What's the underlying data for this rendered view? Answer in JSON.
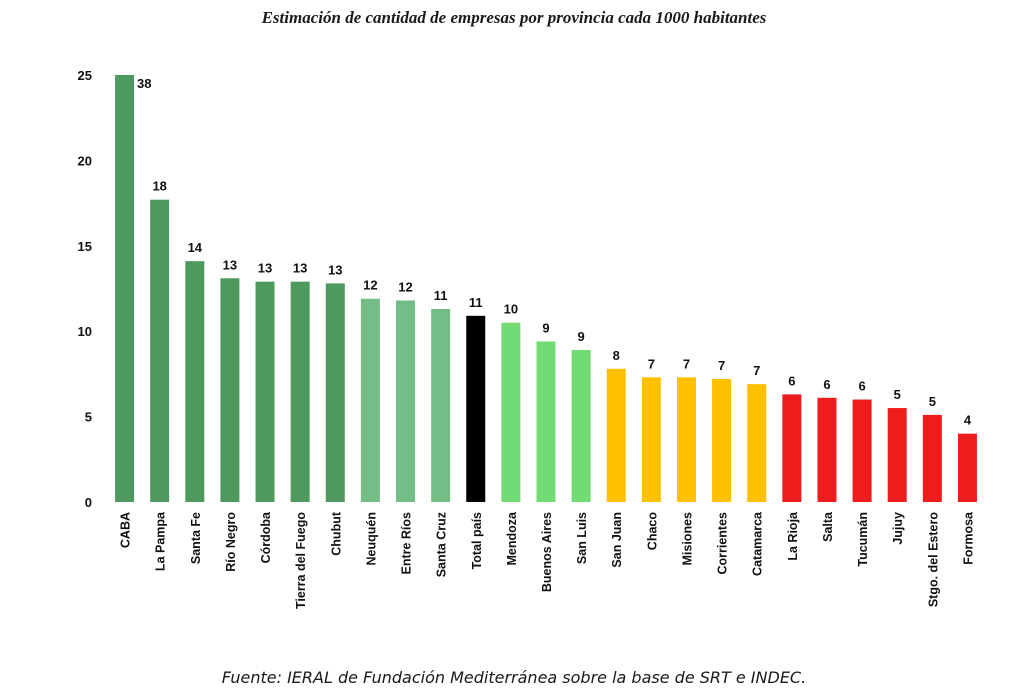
{
  "chart_data": {
    "type": "bar",
    "title": "Estimación de cantidad de empresas por provincia cada 1000 habitantes",
    "source": "Fuente: IERAL de Fundación Mediterránea sobre la base de SRT e INDEC.",
    "ylim": [
      0,
      25
    ],
    "yticks": [
      0,
      5,
      10,
      15,
      20,
      25
    ],
    "grid": false,
    "legend": "none",
    "categories": [
      "CABA",
      "La Pampa",
      "Santa Fe",
      "Río Negro",
      "Córdoba",
      "Tierra del Fuego",
      "Chubut",
      "Neuquén",
      "Entre Ríos",
      "Santa Cruz",
      "Total país",
      "Mendoza",
      "Buenos Aires",
      "San Luis",
      "San Juan",
      "Chaco",
      "Misiones",
      "Corrientes",
      "Catamarca",
      "La Rioja",
      "Salta",
      "Tucumán",
      "Jujuy",
      "Stgo. del Estero",
      "Formosa"
    ],
    "values": [
      38,
      17.7,
      14.1,
      13.1,
      12.9,
      12.9,
      12.8,
      11.9,
      11.8,
      11.3,
      10.9,
      10.5,
      9.4,
      8.9,
      7.8,
      7.3,
      7.3,
      7.2,
      6.9,
      6.3,
      6.1,
      6.0,
      5.5,
      5.1,
      4.0
    ],
    "data_labels": [
      "38",
      "18",
      "14",
      "13",
      "13",
      "13",
      "13",
      "12",
      "12",
      "11",
      "11",
      "10",
      "9",
      "9",
      "8",
      "7",
      "7",
      "7",
      "7",
      "6",
      "6",
      "6",
      "5",
      "5",
      "4"
    ],
    "colors": [
      "#4e9a5e",
      "#4e9a5e",
      "#4e9a5e",
      "#4e9a5e",
      "#4e9a5e",
      "#4e9a5e",
      "#4e9a5e",
      "#74bd86",
      "#74bd86",
      "#74bd86",
      "#000000",
      "#72db74",
      "#72db74",
      "#72db74",
      "#ffc000",
      "#ffc000",
      "#ffc000",
      "#ffc000",
      "#ffc000",
      "#ee1c1c",
      "#ee1c1c",
      "#ee1c1c",
      "#ee1c1c",
      "#ee1c1c",
      "#ee1c1c"
    ]
  }
}
